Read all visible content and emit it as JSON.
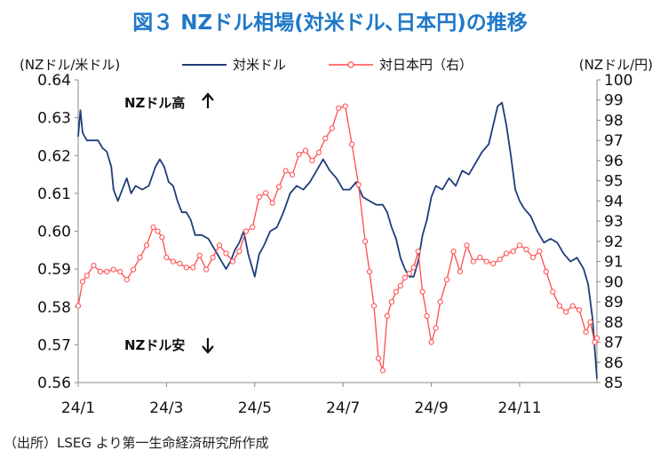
{
  "title": "図３ NZドル相場(対米ドル､日本円)の推移",
  "source": "（出所）LSEG より第一生命経済研究所作成",
  "colors": {
    "usd": "#1f3d7a",
    "jpy": "#ff4b4b"
  },
  "chart_data": {
    "type": "line",
    "title": "図３ NZドル相場(対米ドル､日本円)の推移",
    "left_axis_label": "(NZドル/米ドル)",
    "right_axis_label": "(NZドル/円)",
    "left_ylim": [
      0.56,
      0.64
    ],
    "right_ylim": [
      85,
      100
    ],
    "left_ticks": [
      "0.56",
      "0.57",
      "0.58",
      "0.59",
      "0.60",
      "0.61",
      "0.62",
      "0.63",
      "0.64"
    ],
    "right_ticks": [
      "85",
      "86",
      "87",
      "88",
      "89",
      "90",
      "91",
      "92",
      "93",
      "94",
      "95",
      "96",
      "97",
      "98",
      "99",
      "100"
    ],
    "x_ticks": [
      "24/1",
      "24/3",
      "24/5",
      "24/7",
      "24/9",
      "24/11"
    ],
    "x_range_months": [
      0,
      11.75
    ],
    "annotations": {
      "high": "NZドル高",
      "low": "NZドル安"
    },
    "legend": [
      "対米ドル",
      "対日本円（右）"
    ],
    "series": [
      {
        "name": "対米ドル",
        "axis": "left",
        "marker": "none",
        "x": [
          0,
          0.05,
          0.1,
          0.2,
          0.35,
          0.45,
          0.55,
          0.65,
          0.75,
          0.8,
          0.9,
          1.0,
          1.1,
          1.2,
          1.3,
          1.45,
          1.6,
          1.75,
          1.85,
          1.95,
          2.05,
          2.15,
          2.25,
          2.35,
          2.45,
          2.55,
          2.65,
          2.8,
          2.95,
          3.05,
          3.15,
          3.25,
          3.35,
          3.45,
          3.55,
          3.65,
          3.75,
          3.85,
          4.0,
          4.1,
          4.2,
          4.35,
          4.5,
          4.65,
          4.8,
          4.95,
          5.1,
          5.25,
          5.4,
          5.55,
          5.7,
          5.85,
          6.0,
          6.15,
          6.3,
          6.45,
          6.6,
          6.75,
          6.9,
          7.0,
          7.1,
          7.2,
          7.3,
          7.4,
          7.5,
          7.6,
          7.7,
          7.8,
          7.9,
          8.0,
          8.1,
          8.25,
          8.4,
          8.55,
          8.7,
          8.85,
          9.0,
          9.15,
          9.3,
          9.4,
          9.5,
          9.6,
          9.7,
          9.8,
          9.9,
          10.0,
          10.1,
          10.25,
          10.4,
          10.55,
          10.7,
          10.85,
          11.0,
          11.15,
          11.3,
          11.45,
          11.55,
          11.65,
          11.75
        ],
        "y": [
          0.625,
          0.632,
          0.626,
          0.624,
          0.624,
          0.624,
          0.622,
          0.621,
          0.617,
          0.611,
          0.608,
          0.611,
          0.614,
          0.61,
          0.612,
          0.611,
          0.612,
          0.617,
          0.619,
          0.617,
          0.613,
          0.612,
          0.608,
          0.605,
          0.605,
          0.603,
          0.599,
          0.599,
          0.598,
          0.596,
          0.594,
          0.592,
          0.59,
          0.592,
          0.595,
          0.597,
          0.6,
          0.594,
          0.588,
          0.594,
          0.596,
          0.6,
          0.601,
          0.605,
          0.61,
          0.612,
          0.611,
          0.613,
          0.616,
          0.619,
          0.616,
          0.614,
          0.611,
          0.611,
          0.613,
          0.609,
          0.608,
          0.607,
          0.607,
          0.605,
          0.601,
          0.598,
          0.593,
          0.59,
          0.588,
          0.588,
          0.592,
          0.599,
          0.603,
          0.609,
          0.612,
          0.611,
          0.614,
          0.612,
          0.616,
          0.615,
          0.618,
          0.621,
          0.623,
          0.628,
          0.633,
          0.634,
          0.628,
          0.62,
          0.611,
          0.608,
          0.606,
          0.604,
          0.6,
          0.597,
          0.598,
          0.597,
          0.594,
          0.592,
          0.593,
          0.59,
          0.586,
          0.577,
          0.561
        ]
      },
      {
        "name": "対日本円（右）",
        "axis": "right",
        "marker": "circle",
        "x": [
          0,
          0.1,
          0.2,
          0.35,
          0.5,
          0.65,
          0.8,
          0.95,
          1.1,
          1.25,
          1.4,
          1.55,
          1.7,
          1.8,
          1.9,
          2.0,
          2.15,
          2.3,
          2.45,
          2.6,
          2.75,
          2.9,
          3.05,
          3.2,
          3.35,
          3.5,
          3.65,
          3.8,
          3.95,
          4.1,
          4.25,
          4.4,
          4.55,
          4.7,
          4.85,
          5.0,
          5.15,
          5.3,
          5.45,
          5.6,
          5.75,
          5.9,
          6.05,
          6.2,
          6.35,
          6.5,
          6.6,
          6.7,
          6.8,
          6.9,
          7.0,
          7.1,
          7.2,
          7.3,
          7.4,
          7.5,
          7.6,
          7.7,
          7.8,
          7.9,
          8.0,
          8.1,
          8.2,
          8.35,
          8.5,
          8.65,
          8.8,
          8.95,
          9.1,
          9.25,
          9.4,
          9.55,
          9.7,
          9.85,
          10.0,
          10.15,
          10.3,
          10.45,
          10.6,
          10.75,
          10.9,
          11.05,
          11.2,
          11.35,
          11.5,
          11.6,
          11.7,
          11.75
        ],
        "y": [
          88.8,
          90.0,
          90.3,
          90.8,
          90.5,
          90.5,
          90.6,
          90.5,
          90.1,
          90.6,
          91.2,
          91.8,
          92.7,
          92.5,
          92.2,
          91.2,
          91.0,
          90.9,
          90.7,
          90.7,
          91.3,
          90.6,
          91.2,
          91.8,
          91.4,
          91.0,
          91.5,
          92.5,
          92.7,
          94.2,
          94.4,
          93.9,
          94.7,
          95.5,
          95.3,
          96.3,
          96.5,
          96.0,
          96.4,
          97.1,
          97.6,
          98.6,
          98.7,
          96.8,
          94.8,
          92.0,
          90.5,
          88.8,
          86.2,
          85.6,
          88.3,
          89.0,
          89.5,
          89.8,
          90.2,
          90.4,
          90.7,
          91.5,
          89.5,
          88.3,
          87.0,
          87.7,
          89.0,
          90.1,
          91.5,
          90.5,
          91.8,
          91.0,
          91.2,
          91.0,
          90.9,
          91.1,
          91.4,
          91.5,
          91.8,
          91.6,
          91.2,
          91.5,
          90.5,
          89.5,
          88.8,
          88.5,
          88.8,
          88.6,
          87.5,
          88.0,
          87.0,
          87.2
        ]
      }
    ]
  }
}
